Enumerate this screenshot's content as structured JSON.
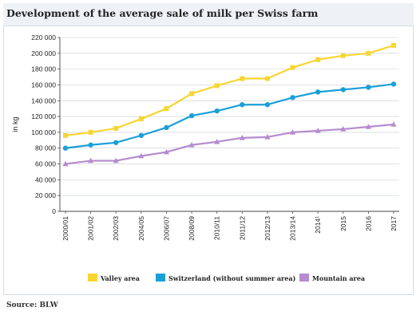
{
  "title": "Development of the average sale of milk per Swiss farm",
  "source": "Source: BLW",
  "chart_data": {
    "type": "line",
    "ylabel": "in kg",
    "xlabel": "",
    "ylim": [
      0,
      220000
    ],
    "yticks": [
      0,
      20000,
      40000,
      60000,
      80000,
      100000,
      120000,
      140000,
      160000,
      180000,
      200000,
      220000
    ],
    "ytick_labels": [
      "0",
      "20 000",
      "40 000",
      "60 000",
      "80 000",
      "100 000",
      "120 000",
      "140 000",
      "160 000",
      "180 000",
      "200 000",
      "220 000"
    ],
    "categories": [
      "2000/01",
      "2001/02",
      "2002/03",
      "2004/05",
      "2006/07",
      "2008/09",
      "2010/11",
      "2011/12",
      "2012/13",
      "2013/14",
      "2014¹",
      "2015",
      "2016",
      "2017"
    ],
    "grid": true,
    "legend_position": "bottom",
    "series": [
      {
        "name": "Valley area",
        "color": "#f7d631",
        "marker": "square",
        "values": [
          96000,
          100000,
          105000,
          117000,
          130000,
          149000,
          159000,
          168000,
          168000,
          182000,
          192000,
          197000,
          200000,
          210000
        ]
      },
      {
        "name": "Switzerland (without summer area)",
        "color": "#1aa0d8",
        "marker": "circle",
        "values": [
          80000,
          84000,
          87000,
          96000,
          106000,
          121000,
          127000,
          135000,
          135000,
          144000,
          151000,
          154000,
          157000,
          161000
        ]
      },
      {
        "name": "Mountain area",
        "color": "#b58ccf",
        "marker": "triangle",
        "values": [
          60000,
          64000,
          64000,
          70000,
          75000,
          84000,
          88000,
          93000,
          94000,
          100000,
          102000,
          104000,
          107000,
          110000
        ]
      }
    ]
  }
}
